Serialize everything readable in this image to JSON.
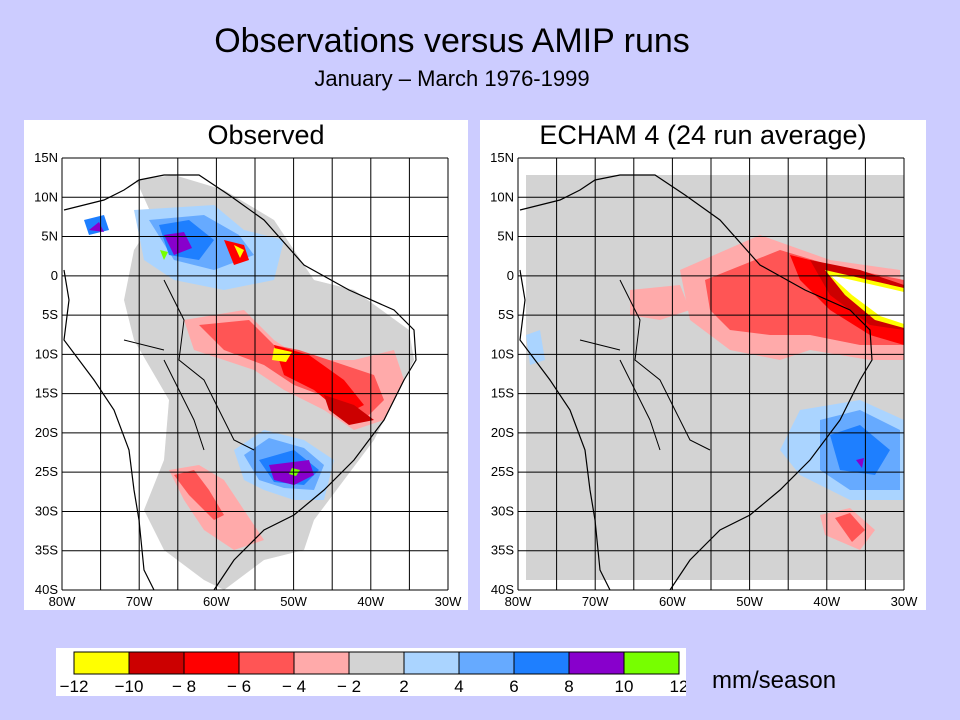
{
  "title": "Observations versus AMIP runs",
  "subtitle": "January – March 1976-1999",
  "units": "mm/season",
  "colors": {
    "background": "#ccccff",
    "grey": "#d3d3d3",
    "land_outline": "#000000"
  },
  "panels": [
    {
      "id": "observed",
      "title": "Observed",
      "lat_ticks": [
        "15N",
        "10N",
        "5N",
        "0",
        "5S",
        "10S",
        "15S",
        "20S",
        "25S",
        "30S",
        "35S",
        "40S"
      ],
      "lon_ticks": [
        "80W",
        "70W",
        "60W",
        "50W",
        "40W",
        "30W"
      ]
    },
    {
      "id": "echam4",
      "title": "ECHAM 4 (24 run average)",
      "lat_ticks": [
        "15N",
        "10N",
        "5N",
        "0",
        "5S",
        "10S",
        "15S",
        "20S",
        "25S",
        "30S",
        "35S",
        "40S"
      ],
      "lon_ticks": [
        "80W",
        "70W",
        "60W",
        "50W",
        "40W",
        "30W"
      ]
    }
  ],
  "colorbar": {
    "tick_labels": [
      "−12",
      "−10",
      "− 8",
      "− 6",
      "− 4",
      "− 2",
      "2",
      "4",
      "6",
      "8",
      "10",
      "12"
    ],
    "colors": [
      "#ffff00",
      "#cc0000",
      "#ff0000",
      "#ff5555",
      "#ffaaaa",
      "#d3d3d3",
      "#aad4ff",
      "#66aaff",
      "#1e7fff",
      "#8800cc",
      "#77ff00"
    ]
  }
}
